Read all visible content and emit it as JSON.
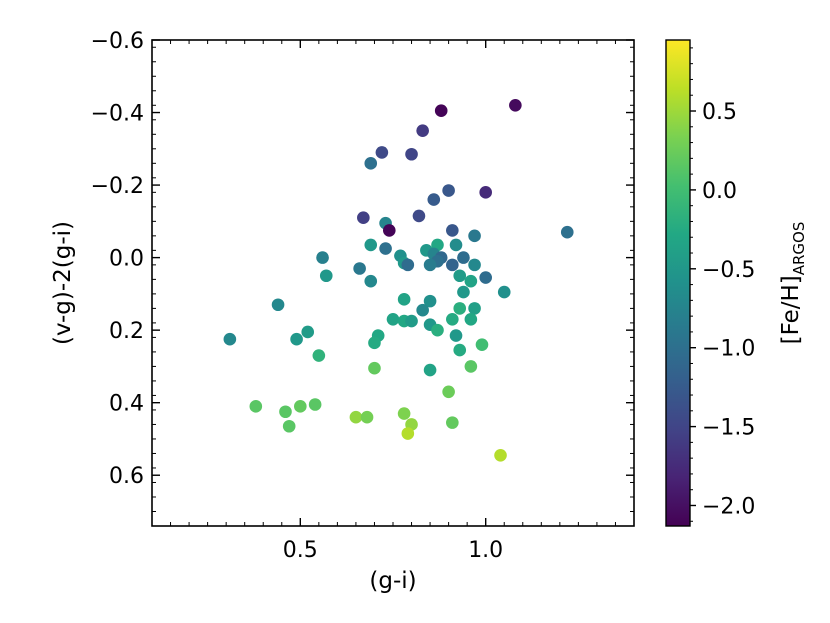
{
  "chart_data": {
    "type": "scatter",
    "xlabel": "(g-i)",
    "ylabel": "(v-g)-2(g-i)",
    "colorbar_label_main": "[Fe/H]",
    "colorbar_label_sub": "ARGOS",
    "xlim": [
      0.1,
      1.4
    ],
    "ylim": [
      0.74,
      -0.6
    ],
    "y_inverted": true,
    "clim": [
      -2.13,
      0.95
    ],
    "colormap": "viridis",
    "xticks": [
      0.5,
      1.0
    ],
    "xtick_labels": [
      "0.5",
      "1.0"
    ],
    "yticks": [
      -0.6,
      -0.4,
      -0.2,
      0.0,
      0.2,
      0.4,
      0.6
    ],
    "ytick_labels": [
      "−0.6",
      "−0.4",
      "−0.2",
      "0.0",
      "0.2",
      "0.4",
      "0.6"
    ],
    "cticks": [
      0.5,
      0.0,
      -0.5,
      -1.0,
      -1.5,
      -2.0
    ],
    "ctick_labels": [
      "0.5",
      "0.0",
      "−0.5",
      "−1.0",
      "−1.5",
      "−2.0"
    ],
    "grid": false,
    "legend": false,
    "points": [
      {
        "x": 0.88,
        "y": -0.405,
        "c": -2.1
      },
      {
        "x": 1.08,
        "y": -0.42,
        "c": -2.05
      },
      {
        "x": 0.83,
        "y": -0.35,
        "c": -1.6
      },
      {
        "x": 0.72,
        "y": -0.29,
        "c": -1.45
      },
      {
        "x": 0.8,
        "y": -0.285,
        "c": -1.5
      },
      {
        "x": 0.69,
        "y": -0.26,
        "c": -1.0
      },
      {
        "x": 0.9,
        "y": -0.185,
        "c": -1.3
      },
      {
        "x": 1.0,
        "y": -0.18,
        "c": -1.75
      },
      {
        "x": 0.86,
        "y": -0.16,
        "c": -1.25
      },
      {
        "x": 0.67,
        "y": -0.11,
        "c": -1.55
      },
      {
        "x": 0.82,
        "y": -0.115,
        "c": -1.45
      },
      {
        "x": 0.73,
        "y": -0.095,
        "c": -0.75
      },
      {
        "x": 0.74,
        "y": -0.075,
        "c": -2.1
      },
      {
        "x": 0.91,
        "y": -0.075,
        "c": -1.3
      },
      {
        "x": 1.22,
        "y": -0.07,
        "c": -1.0
      },
      {
        "x": 0.97,
        "y": -0.06,
        "c": -0.9
      },
      {
        "x": 0.69,
        "y": -0.035,
        "c": -0.5
      },
      {
        "x": 0.73,
        "y": -0.025,
        "c": -1.0
      },
      {
        "x": 0.87,
        "y": -0.035,
        "c": -0.3
      },
      {
        "x": 0.92,
        "y": -0.035,
        "c": -0.65
      },
      {
        "x": 0.84,
        "y": -0.02,
        "c": -0.5
      },
      {
        "x": 0.77,
        "y": -0.005,
        "c": -0.6
      },
      {
        "x": 0.86,
        "y": -0.01,
        "c": -0.75
      },
      {
        "x": 0.88,
        "y": 0.0,
        "c": -1.1
      },
      {
        "x": 0.87,
        "y": 0.01,
        "c": -1.0
      },
      {
        "x": 0.56,
        "y": 0.0,
        "c": -0.8
      },
      {
        "x": 0.94,
        "y": 0.0,
        "c": -1.05
      },
      {
        "x": 0.78,
        "y": 0.015,
        "c": -0.5
      },
      {
        "x": 0.79,
        "y": 0.02,
        "c": -1.05
      },
      {
        "x": 0.91,
        "y": 0.02,
        "c": -1.15
      },
      {
        "x": 0.85,
        "y": 0.02,
        "c": -0.85
      },
      {
        "x": 0.66,
        "y": 0.03,
        "c": -0.9
      },
      {
        "x": 0.97,
        "y": 0.02,
        "c": -0.7
      },
      {
        "x": 0.93,
        "y": 0.05,
        "c": -0.45
      },
      {
        "x": 0.57,
        "y": 0.05,
        "c": -0.5
      },
      {
        "x": 1.0,
        "y": 0.055,
        "c": -1.05
      },
      {
        "x": 0.69,
        "y": 0.065,
        "c": -0.7
      },
      {
        "x": 0.96,
        "y": 0.065,
        "c": -0.35
      },
      {
        "x": 0.94,
        "y": 0.095,
        "c": -0.5
      },
      {
        "x": 1.05,
        "y": 0.095,
        "c": -0.6
      },
      {
        "x": 0.78,
        "y": 0.115,
        "c": -0.35
      },
      {
        "x": 0.85,
        "y": 0.12,
        "c": -0.6
      },
      {
        "x": 0.44,
        "y": 0.13,
        "c": -0.7
      },
      {
        "x": 0.83,
        "y": 0.145,
        "c": -0.7
      },
      {
        "x": 0.93,
        "y": 0.14,
        "c": -0.2
      },
      {
        "x": 0.97,
        "y": 0.14,
        "c": -0.4
      },
      {
        "x": 0.75,
        "y": 0.17,
        "c": -0.35
      },
      {
        "x": 0.78,
        "y": 0.175,
        "c": -0.3
      },
      {
        "x": 0.8,
        "y": 0.175,
        "c": -0.45
      },
      {
        "x": 0.91,
        "y": 0.17,
        "c": -0.25
      },
      {
        "x": 0.96,
        "y": 0.17,
        "c": -0.3
      },
      {
        "x": 0.85,
        "y": 0.185,
        "c": -0.5
      },
      {
        "x": 0.87,
        "y": 0.2,
        "c": -0.2
      },
      {
        "x": 0.52,
        "y": 0.205,
        "c": -0.45
      },
      {
        "x": 0.71,
        "y": 0.215,
        "c": -0.3
      },
      {
        "x": 0.92,
        "y": 0.215,
        "c": -0.5
      },
      {
        "x": 0.31,
        "y": 0.225,
        "c": -0.7
      },
      {
        "x": 0.49,
        "y": 0.225,
        "c": -0.5
      },
      {
        "x": 0.7,
        "y": 0.235,
        "c": -0.25
      },
      {
        "x": 0.99,
        "y": 0.24,
        "c": 0.0
      },
      {
        "x": 0.93,
        "y": 0.255,
        "c": -0.25
      },
      {
        "x": 0.55,
        "y": 0.27,
        "c": -0.15
      },
      {
        "x": 0.7,
        "y": 0.305,
        "c": 0.2
      },
      {
        "x": 0.85,
        "y": 0.31,
        "c": -0.35
      },
      {
        "x": 0.96,
        "y": 0.3,
        "c": 0.15
      },
      {
        "x": 0.9,
        "y": 0.37,
        "c": 0.25
      },
      {
        "x": 0.54,
        "y": 0.405,
        "c": 0.15
      },
      {
        "x": 0.38,
        "y": 0.41,
        "c": 0.15
      },
      {
        "x": 0.5,
        "y": 0.41,
        "c": 0.2
      },
      {
        "x": 0.46,
        "y": 0.425,
        "c": 0.15
      },
      {
        "x": 0.78,
        "y": 0.43,
        "c": 0.35
      },
      {
        "x": 0.65,
        "y": 0.44,
        "c": 0.45
      },
      {
        "x": 0.68,
        "y": 0.44,
        "c": 0.3
      },
      {
        "x": 0.91,
        "y": 0.455,
        "c": 0.2
      },
      {
        "x": 0.8,
        "y": 0.46,
        "c": 0.45
      },
      {
        "x": 0.47,
        "y": 0.465,
        "c": 0.15
      },
      {
        "x": 0.79,
        "y": 0.485,
        "c": 0.6
      },
      {
        "x": 1.04,
        "y": 0.545,
        "c": 0.6
      }
    ]
  }
}
